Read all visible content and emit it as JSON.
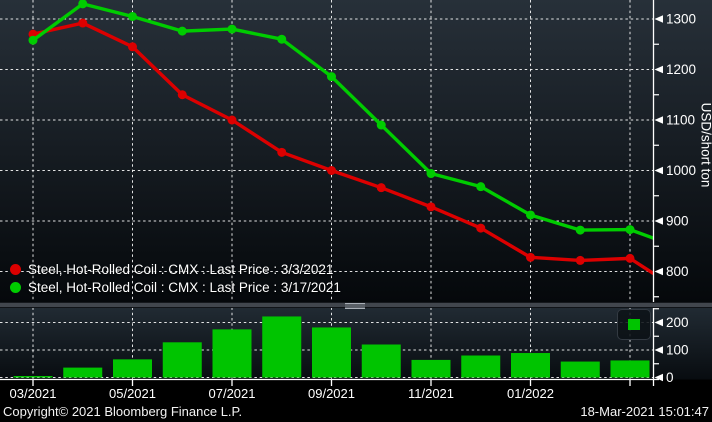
{
  "legend": {
    "items": [
      {
        "label": "Steel, Hot-Rolled Coil : CMX : Last Price : 3/3/2021",
        "color": "#dc0000"
      },
      {
        "label": "Steel, Hot-Rolled Coil : CMX : Last Price : 3/17/2021",
        "color": "#00cc00"
      }
    ]
  },
  "x_axis": {
    "labels": [
      "03/2021",
      "05/2021",
      "07/2021",
      "09/2021",
      "11/2021",
      "01/2022"
    ]
  },
  "y_axis": {
    "title": "USD/short ton",
    "ticks": [
      800,
      900,
      1000,
      1100,
      1200,
      1300
    ]
  },
  "volume_axis": {
    "ticks": [
      0,
      100,
      200
    ]
  },
  "footer": {
    "copyright": "Copyright© 2021 Bloomberg Finance L.P.",
    "timestamp": "18-Mar-2021 15:01:47"
  },
  "chart_data": [
    {
      "type": "line",
      "title": "Steel, Hot-Rolled Coil : CMX futures curve",
      "x": [
        "03/2021",
        "04/2021",
        "05/2021",
        "06/2021",
        "07/2021",
        "08/2021",
        "09/2021",
        "10/2021",
        "11/2021",
        "12/2021",
        "01/2022",
        "02/2022",
        "03/2022"
      ],
      "series": [
        {
          "name": "Last Price : 3/3/2021",
          "color": "#dc0000",
          "values": [
            1270,
            1292,
            1245,
            1150,
            1100,
            1036,
            1000,
            966,
            928,
            886,
            828,
            822,
            826
          ],
          "edge_value": 796
        },
        {
          "name": "Last Price : 3/17/2021",
          "color": "#00cc00",
          "values": [
            1258,
            1330,
            1305,
            1276,
            1280,
            1260,
            1186,
            1090,
            994,
            968,
            912,
            882,
            883
          ],
          "edge_value": 866
        }
      ],
      "ylabel": "USD/short ton",
      "ylim": [
        740,
        1338
      ],
      "yticks": [
        800,
        900,
        1000,
        1100,
        1200,
        1300
      ],
      "yticks_minor": [
        750,
        850,
        950,
        1050,
        1150,
        1250
      ],
      "xticks_shown": [
        "03/2021",
        "05/2021",
        "07/2021",
        "09/2021",
        "11/2021",
        "01/2022",
        ""
      ],
      "grid": true,
      "legend_position": "bottom-left"
    },
    {
      "type": "bar",
      "categories": [
        "03/2021",
        "04/2021",
        "05/2021",
        "06/2021",
        "07/2021",
        "08/2021",
        "09/2021",
        "10/2021",
        "11/2021",
        "12/2021",
        "01/2022",
        "02/2022",
        "03/2022"
      ],
      "values": [
        3,
        36,
        66,
        128,
        175,
        222,
        182,
        120,
        64,
        80,
        89,
        58,
        62
      ],
      "color": "#00c400",
      "ylim": [
        0,
        252
      ],
      "yticks": [
        0,
        100,
        200
      ],
      "yticks_minor": [
        50,
        150,
        250
      ],
      "grid": true
    }
  ],
  "colors": {
    "grid": "#ffffff",
    "axis": "#ffffff",
    "panel_top_start": "#273039",
    "panel_top_end": "#05080b",
    "panel_bottom_start": "#232d36",
    "panel_bottom_end": "#080c10"
  }
}
